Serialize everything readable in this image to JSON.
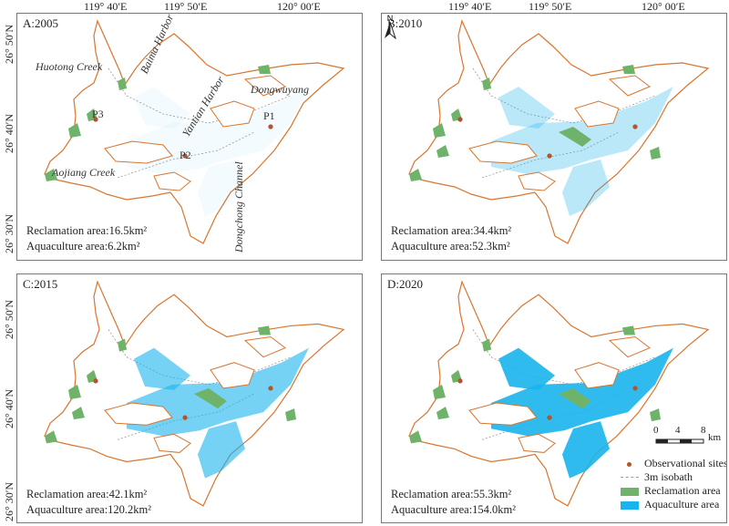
{
  "coords": {
    "top": [
      "119° 40′E",
      "119° 50′E",
      "120° 00′E"
    ],
    "left": [
      "26° 50′N",
      "26° 40′N",
      "26° 30′N"
    ]
  },
  "panels": [
    {
      "label": "A:2005",
      "reclamation": "Reclamation area:16.5km²",
      "aquaculture": "Aquaculture area:6.2km²"
    },
    {
      "label": "B:2010",
      "reclamation": "Reclamation area:34.4km²",
      "aquaculture": "Aquaculture area:52.3km²"
    },
    {
      "label": "C:2015",
      "reclamation": "Reclamation area:42.1km²",
      "aquaculture": "Aquaculture area:120.2km²"
    },
    {
      "label": "D:2020",
      "reclamation": "Reclamation area:55.3km²",
      "aquaculture": "Aquaculture area:154.0km²"
    }
  ],
  "aquaculture_level": [
    0.05,
    0.3,
    0.6,
    0.9
  ],
  "places": {
    "huotong": "Huotong Creek",
    "baima": "Baima Harbor",
    "yantian": "Yantian Harbor",
    "dongwuyang": "Dongwuyang",
    "aojiang": "Aojiang Creek",
    "dongchong": "Dongchong Channel"
  },
  "sites": {
    "p1": "P1",
    "p2": "P2",
    "p3": "P3"
  },
  "north": "N",
  "scale": {
    "ticks": [
      "0",
      "4",
      "8"
    ],
    "unit": "km"
  },
  "legend": {
    "sites": "Observational sites",
    "isobath": "3m isobath",
    "reclamation": "Reclamation area",
    "aquaculture": "Aquaculture area"
  },
  "colors": {
    "coastline": "#d9752f",
    "reclamation": "#6fb36b",
    "aquaculture": "#19b4ec",
    "site": "#b5532a",
    "isobath": "#9a9a9a"
  }
}
